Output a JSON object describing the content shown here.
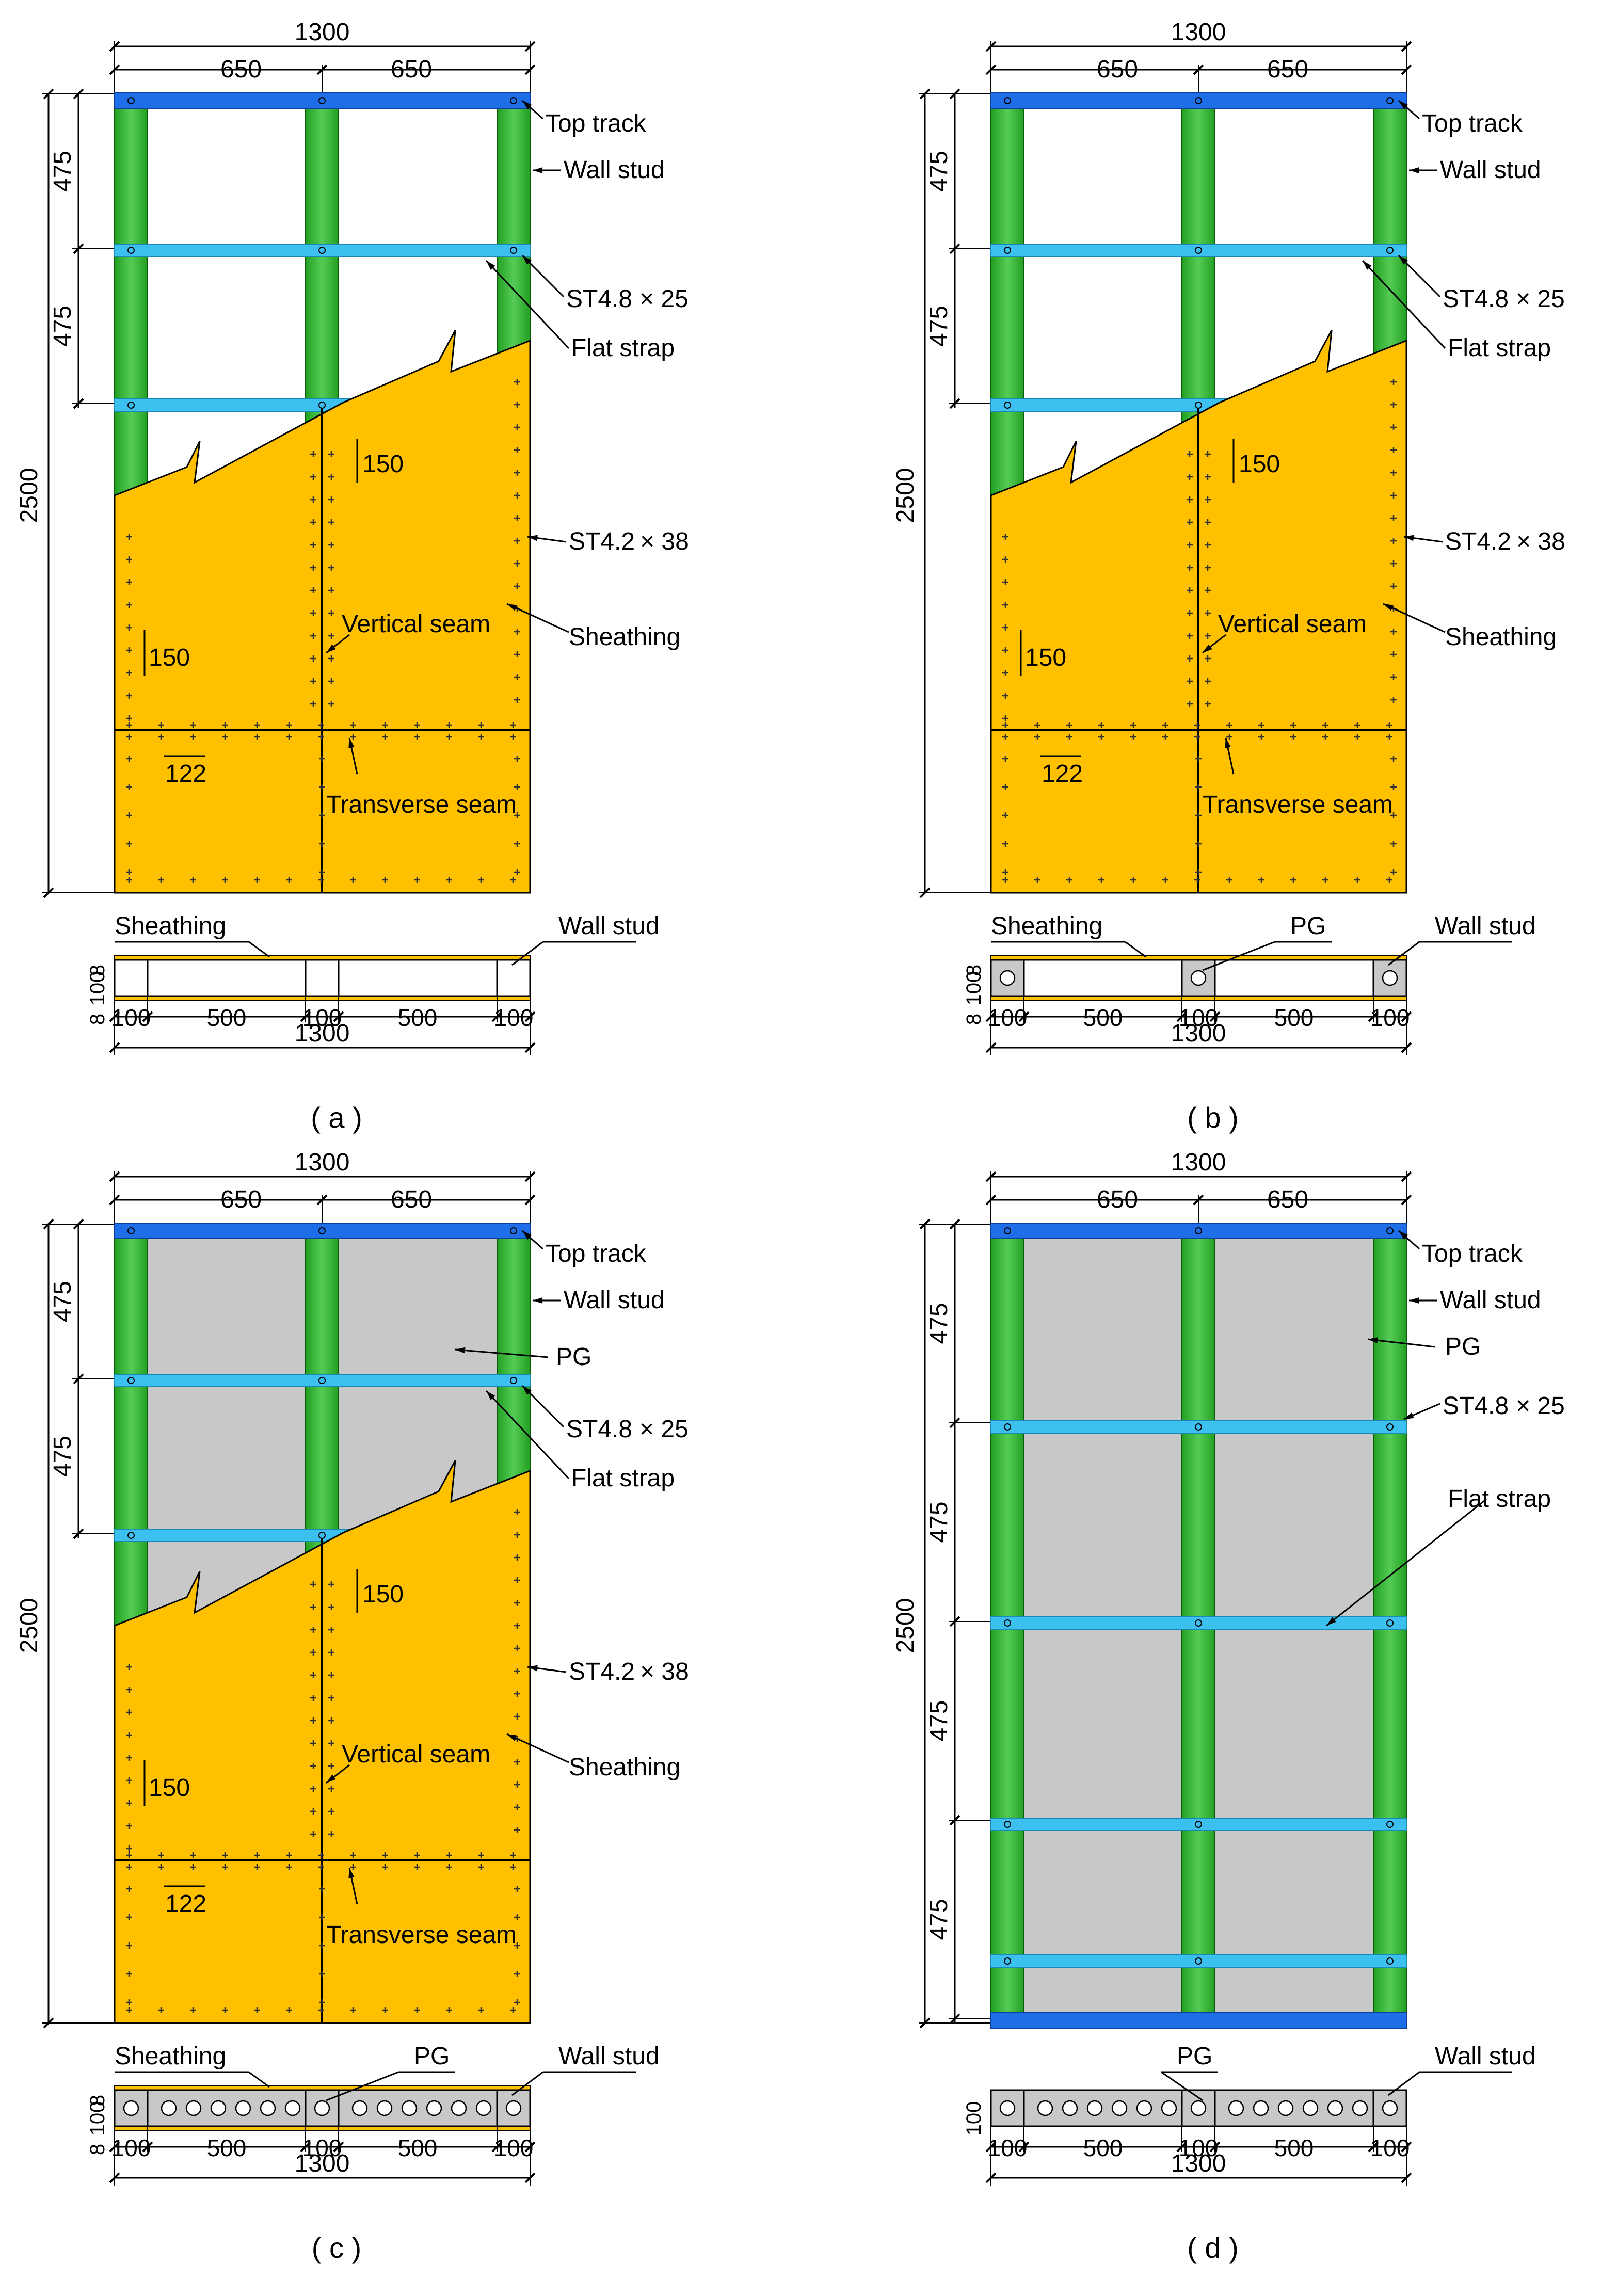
{
  "colors": {
    "sheathing": "#FFC000",
    "wall_stud": "#22A022",
    "wall_stud_highlight": "#55CC55",
    "top_track": "#1E6EE8",
    "flat_strap": "#3CC0F0",
    "pg": "#C8C8C8",
    "line": "#000000"
  },
  "panels": [
    {
      "id": "a",
      "caption": "( a )",
      "infill": "none",
      "sheathing": true,
      "dims": {
        "total_width": "1300",
        "bay_left": "650",
        "bay_right": "650",
        "height": "2500",
        "row_1": "475",
        "row_2": "475",
        "spacing_1": "150",
        "spacing_2": "150",
        "spacing_3": "122"
      },
      "labels": {
        "top_track": "Top track",
        "wall_stud": "Wall stud",
        "screw_small": "ST4.8",
        "screw_small_suffix": "× 25",
        "flat_strap": "Flat strap",
        "screw_large": "ST4.2",
        "screw_large_suffix": "× 38",
        "sheathing": "Sheathing",
        "vertical_seam": "Vertical seam",
        "transverse_seam": "Transverse seam"
      },
      "section": {
        "label_left": "Sheathing",
        "label_right": "Wall stud",
        "t_top": "8",
        "depth": "100",
        "t_bottom": "8",
        "dims": [
          "100",
          "500",
          "100",
          "500",
          "100"
        ],
        "total": "1300"
      }
    },
    {
      "id": "b",
      "caption": "( b )",
      "infill": "stud-only",
      "sheathing": true,
      "dims": {
        "total_width": "1300",
        "bay_left": "650",
        "bay_right": "650",
        "height": "2500",
        "row_1": "475",
        "row_2": "475",
        "spacing_1": "150",
        "spacing_2": "150",
        "spacing_3": "122"
      },
      "labels": {
        "top_track": "Top track",
        "wall_stud": "Wall stud",
        "screw_small": "ST4.8",
        "screw_small_suffix": "× 25",
        "flat_strap": "Flat strap",
        "screw_large": "ST4.2",
        "screw_large_suffix": "× 38",
        "sheathing": "Sheathing",
        "vertical_seam": "Vertical seam",
        "transverse_seam": "Transverse seam"
      },
      "section": {
        "label_left": "Sheathing",
        "label_mid": "PG",
        "label_right": "Wall stud",
        "t_top": "8",
        "depth": "100",
        "t_bottom": "8",
        "dims": [
          "100",
          "500",
          "100",
          "500",
          "100"
        ],
        "total": "1300"
      }
    },
    {
      "id": "c",
      "caption": "( c )",
      "infill": "full",
      "sheathing": true,
      "dims": {
        "total_width": "1300",
        "bay_left": "650",
        "bay_right": "650",
        "height": "2500",
        "row_1": "475",
        "row_2": "475",
        "spacing_1": "150",
        "spacing_2": "150",
        "spacing_3": "122"
      },
      "labels": {
        "top_track": "Top track",
        "wall_stud": "Wall stud",
        "pg": "PG",
        "screw_small": "ST4.8",
        "screw_small_suffix": "× 25",
        "flat_strap": "Flat strap",
        "screw_large": "ST4.2",
        "screw_large_suffix": "× 38",
        "sheathing": "Sheathing",
        "vertical_seam": "Vertical seam",
        "transverse_seam": "Transverse seam"
      },
      "section": {
        "label_left": "Sheathing",
        "label_mid": "PG",
        "label_right": "Wall stud",
        "t_top": "8",
        "depth": "100",
        "t_bottom": "8",
        "dims": [
          "100",
          "500",
          "100",
          "500",
          "100"
        ],
        "total": "1300"
      }
    },
    {
      "id": "d",
      "caption": "( d )",
      "infill": "full",
      "sheathing": false,
      "dims": {
        "total_width": "1300",
        "bay_left": "650",
        "bay_right": "650",
        "height": "2500",
        "row_1": "475",
        "row_2": "475",
        "row_3": "475",
        "row_4": "475"
      },
      "labels": {
        "top_track": "Top track",
        "wall_stud": "Wall stud",
        "pg": "PG",
        "screw_small": "ST4.8",
        "screw_small_suffix": "× 25",
        "flat_strap": "Flat strap"
      },
      "section": {
        "label_mid": "PG",
        "label_right": "Wall stud",
        "depth": "100",
        "dims": [
          "100",
          "500",
          "100",
          "500",
          "100"
        ],
        "total": "1300"
      }
    }
  ]
}
